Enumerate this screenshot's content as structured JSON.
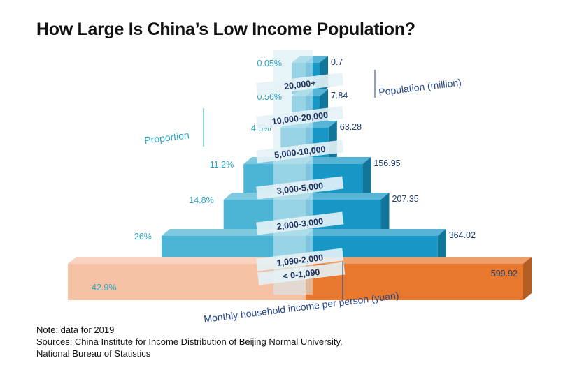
{
  "title": "How Large Is China’s Low Income Population?",
  "chart_data": {
    "type": "bar",
    "style": "3d population pyramid (back-to-back bars)",
    "categories": [
      "< 0-1,090",
      "1,090-2,000",
      "2,000-3,000",
      "3,000-5,000",
      "5,000-10,000",
      "10,000-20,000",
      "20,000+"
    ],
    "series": [
      {
        "name": "Proportion",
        "unit": "%",
        "values": [
          42.9,
          26,
          14.8,
          11.2,
          4.5,
          0.56,
          0.05
        ],
        "labels": [
          "42.9%",
          "26%",
          "14.8%",
          "11.2%",
          "4.5%",
          "0.56%",
          "0.05%"
        ]
      },
      {
        "name": "Population (million)",
        "values": [
          599.92,
          364.02,
          207.35,
          156.95,
          63.28,
          7.84,
          0.7
        ],
        "labels": [
          "599.92",
          "364.02",
          "207.35",
          "156.95",
          "63.28",
          "7.84",
          "0.7"
        ]
      }
    ],
    "left_axis_title": "Proportion",
    "right_axis_title": "Population (million)",
    "xlabel": "Monthly household income per person (yuan)",
    "colors": {
      "bottom_left": "#f6c2a6",
      "bottom_right": "#e8782d",
      "left_bars": "#4cb4d4",
      "right_bars": "#1697c6",
      "spine": "#d6ecf2",
      "band_labels": "#1c2f5c",
      "proportion_labels": "#2aa5c4",
      "population_labels": "#1f3f6e"
    }
  },
  "notes": {
    "note": "Note: data for 2019",
    "sources_line1": "Sources: China Institute for Income Distribution of Beijing Normal University,",
    "sources_line2": "National Bureau of Statistics"
  }
}
